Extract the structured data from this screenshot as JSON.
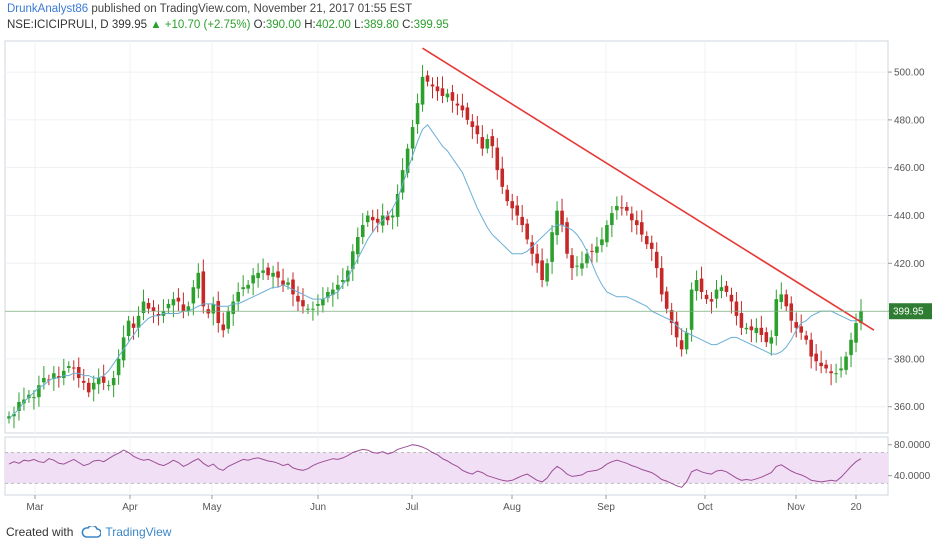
{
  "header": {
    "author": "DrunkAnalyst86",
    "published": "published on TradingView.com, November 21, 2017 01:55 EST",
    "symbol": "NSE:ICICIPRULI, D",
    "last": "399.95",
    "change": "+10.70 (+2.75%)",
    "o_label": "O:",
    "o": "390.00",
    "h_label": "H:",
    "h": "402.00",
    "l_label": "L:",
    "l": "389.80",
    "c_label": "C:",
    "c": "399.95"
  },
  "footer": {
    "created": "Created with",
    "brand": "TradingView"
  },
  "icons": {
    "up": "up-triangle-icon",
    "logo": "tradingview-cloud-icon"
  },
  "colors": {
    "up": "#2ca02c",
    "down": "#c62828",
    "ma": "#6aaed6",
    "trend": "#e53935",
    "rsi": "#9c4f96",
    "rsi_band": "#f1e0f5"
  },
  "chart_data": [
    {
      "type": "candlestick",
      "title": "",
      "ylim": [
        349,
        513
      ],
      "y_ticks": [
        "500.00",
        "480.00",
        "460.00",
        "440.00",
        "420.00",
        "400.00",
        "380.00",
        "360.00"
      ],
      "x_ticks": [
        "Mar",
        "Apr",
        "May",
        "Jun",
        "Jul",
        "Aug",
        "Sep",
        "Oct",
        "Nov",
        "20"
      ],
      "last_price_label": "399.95",
      "close_series": [
        356,
        357,
        362,
        363,
        365,
        364,
        369,
        372,
        371,
        374,
        372,
        375,
        377,
        376,
        372,
        370,
        366,
        370,
        372,
        370,
        369,
        372,
        380,
        389,
        396,
        393,
        398,
        404,
        401,
        400,
        398,
        400,
        403,
        405,
        404,
        400,
        402,
        410,
        416,
        402,
        399,
        403,
        395,
        392,
        400,
        404,
        408,
        410,
        411,
        415,
        416,
        417,
        415,
        416,
        414,
        411,
        412,
        407,
        404,
        402,
        401,
        401,
        403,
        405,
        408,
        409,
        411,
        413,
        417,
        425,
        431,
        436,
        440,
        438,
        437,
        440,
        438,
        440,
        449,
        459,
        468,
        477,
        487,
        498,
        496,
        494,
        492,
        490,
        491,
        488,
        486,
        484,
        480,
        477,
        474,
        468,
        472,
        469,
        459,
        452,
        446,
        443,
        440,
        436,
        430,
        424,
        420,
        413,
        420,
        433,
        442,
        436,
        424,
        418,
        419,
        420,
        424,
        425,
        427,
        430,
        436,
        441,
        444,
        443,
        442,
        438,
        436,
        432,
        428,
        426,
        418,
        407,
        401,
        395,
        389,
        384,
        391,
        409,
        413,
        408,
        405,
        404,
        409,
        410,
        408,
        404,
        398,
        393,
        393,
        392,
        393,
        390,
        387,
        389,
        405,
        407,
        402,
        396,
        393,
        391,
        388,
        381,
        379,
        377,
        376,
        374,
        374,
        376,
        381,
        388,
        395,
        400
      ],
      "ma_series": [
        355,
        357,
        359,
        362,
        364,
        366,
        368,
        369,
        371,
        372,
        372,
        373,
        373,
        374,
        374,
        373,
        373,
        372,
        372,
        373,
        375,
        378,
        381,
        384,
        387,
        390,
        393,
        395,
        397,
        398,
        398,
        399,
        399,
        399,
        399,
        400,
        400,
        401,
        402,
        403,
        403,
        403,
        402,
        402,
        402,
        403,
        403,
        404,
        405,
        406,
        407,
        408,
        409,
        410,
        410,
        411,
        410,
        409,
        408,
        407,
        406,
        405,
        405,
        405,
        406,
        407,
        408,
        411,
        414,
        418,
        422,
        426,
        430,
        433,
        436,
        438,
        440,
        443,
        447,
        453,
        459,
        465,
        471,
        476,
        478,
        475,
        472,
        469,
        467,
        464,
        461,
        458,
        453,
        448,
        443,
        439,
        435,
        432,
        430,
        428,
        426,
        424,
        424,
        424,
        425,
        427,
        429,
        431,
        433,
        435,
        436,
        436,
        435,
        434,
        432,
        429,
        425,
        420,
        415,
        411,
        408,
        407,
        406,
        406,
        406,
        405,
        404,
        403,
        402,
        400,
        399,
        398,
        397,
        396,
        394,
        392,
        391,
        390,
        389,
        388,
        387,
        386,
        386,
        387,
        388,
        389,
        389,
        388,
        387,
        386,
        385,
        384,
        383,
        382,
        382,
        383,
        385,
        388,
        392,
        395,
        396,
        398,
        399,
        400,
        400,
        400,
        399,
        398,
        397,
        396,
        396,
        397
      ]
    },
    {
      "type": "line",
      "title": "",
      "ylim": [
        15,
        90
      ],
      "y_ticks": [
        "80.0000",
        "40.0000"
      ],
      "band": [
        30,
        70
      ],
      "values": [
        55,
        58,
        56,
        60,
        59,
        61,
        58,
        57,
        62,
        60,
        56,
        55,
        58,
        61,
        57,
        53,
        55,
        59,
        60,
        58,
        62,
        66,
        69,
        73,
        70,
        65,
        62,
        60,
        61,
        58,
        55,
        53,
        56,
        60,
        57,
        52,
        55,
        59,
        62,
        56,
        52,
        55,
        49,
        47,
        52,
        55,
        58,
        61,
        60,
        62,
        63,
        61,
        59,
        58,
        56,
        53,
        55,
        50,
        48,
        47,
        49,
        53,
        56,
        58,
        60,
        62,
        61,
        63,
        66,
        70,
        72,
        74,
        73,
        70,
        69,
        71,
        68,
        70,
        74,
        76,
        78,
        80,
        79,
        77,
        74,
        70,
        67,
        62,
        59,
        55,
        52,
        47,
        44,
        42,
        46,
        44,
        40,
        38,
        36,
        34,
        33,
        34,
        37,
        40,
        42,
        38,
        34,
        32,
        37,
        46,
        52,
        48,
        42,
        39,
        40,
        41,
        45,
        46,
        47,
        50,
        55,
        58,
        60,
        58,
        56,
        53,
        51,
        48,
        46,
        44,
        40,
        35,
        33,
        30,
        27,
        25,
        32,
        45,
        48,
        45,
        43,
        42,
        46,
        47,
        45,
        41,
        37,
        34,
        35,
        34,
        36,
        38,
        41,
        44,
        52,
        54,
        50,
        46,
        43,
        41,
        38,
        34,
        33,
        32,
        33,
        34,
        33,
        38,
        45,
        52,
        58,
        62
      ]
    }
  ]
}
